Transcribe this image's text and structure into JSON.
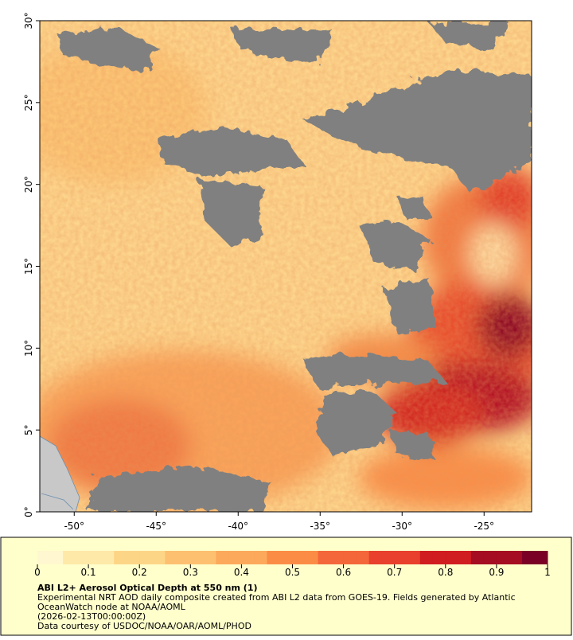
{
  "chart_data": {
    "type": "map",
    "xlim": [
      -52.1,
      -22.1
    ],
    "ylim": [
      0,
      30
    ],
    "xticks": [
      {
        "value": -50,
        "label": "-50°"
      },
      {
        "value": -45,
        "label": "-45°"
      },
      {
        "value": -40,
        "label": "-40°"
      },
      {
        "value": -35,
        "label": "-35°"
      },
      {
        "value": -30,
        "label": "-30°"
      },
      {
        "value": -25,
        "label": "-25°"
      }
    ],
    "yticks": [
      {
        "value": 0,
        "label": "0°"
      },
      {
        "value": 5,
        "label": "5°"
      },
      {
        "value": 10,
        "label": "10°"
      },
      {
        "value": 15,
        "label": "15°"
      },
      {
        "value": 20,
        "label": "20°"
      },
      {
        "value": 25,
        "label": "25°"
      },
      {
        "value": 30,
        "label": "30°"
      }
    ],
    "colorbar": {
      "lim": [
        0,
        1
      ],
      "ticks": [
        0,
        0.1,
        0.2,
        0.3,
        0.4,
        0.5,
        0.6,
        0.7,
        0.8,
        0.9,
        1
      ],
      "colormap": [
        "#fff7d0",
        "#fee9a8",
        "#fdd587",
        "#fdc070",
        "#fca95b",
        "#fb8c46",
        "#f4673a",
        "#e8402c",
        "#d01d20",
        "#a50d22",
        "#7a0026"
      ]
    },
    "title": "ABI L2+ Aerosol Optical Depth at 550 nm (1)",
    "caption": [
      "Experimental NRT AOD daily composite created from ABI L2 data from GOES-19. Fields generated by Atlantic",
      "OceanWatch node at NOAA/AOML",
      "(2026-02-13T00:00:00Z)",
      "Data courtesy of USDOC/NOAA/OAR/AOML/PHOD"
    ]
  }
}
